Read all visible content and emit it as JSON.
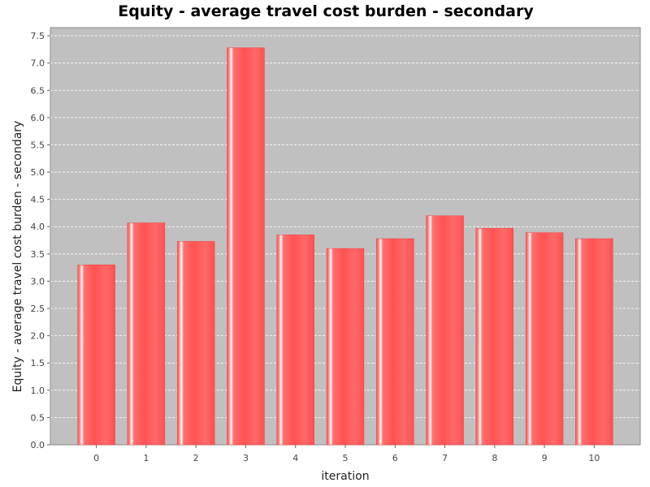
{
  "chart_data": {
    "type": "bar",
    "title": "Equity -  average travel cost burden -  secondary",
    "xlabel": "iteration",
    "ylabel": "Equity -  average travel cost burden -  secondary",
    "categories": [
      "0",
      "1",
      "2",
      "3",
      "4",
      "5",
      "6",
      "7",
      "8",
      "9",
      "10"
    ],
    "values": [
      3.3,
      4.07,
      3.73,
      7.28,
      3.85,
      3.6,
      3.78,
      4.2,
      3.97,
      3.89,
      3.78
    ],
    "ylim": [
      0,
      7.65
    ],
    "yticks": [
      "0.0",
      "0.5",
      "1.0",
      "1.5",
      "2.0",
      "2.5",
      "3.0",
      "3.5",
      "4.0",
      "4.5",
      "5.0",
      "5.5",
      "6.0",
      "6.5",
      "7.0",
      "7.5"
    ],
    "grid": true,
    "legend": "none",
    "colors": {
      "plot_background": "#c0c0c0",
      "bar": "#ff5555",
      "bar_highlight": "#ffffff",
      "gridline": "#ffffff"
    }
  }
}
